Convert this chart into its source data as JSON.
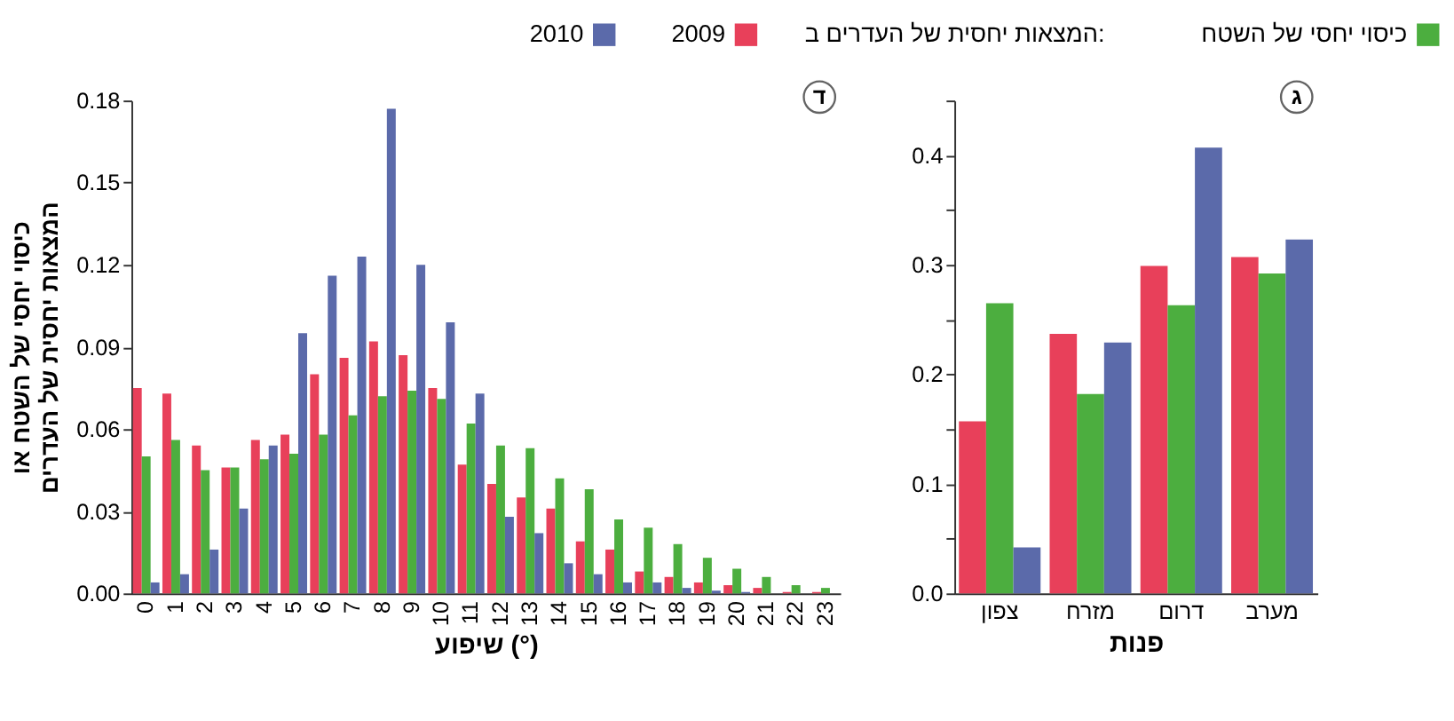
{
  "chart_data": [
    {
      "type": "bar",
      "title": "ד",
      "xlabel": "שיפוע (°)",
      "ylabel": "כיסוי יחסי של השטח או\nהמצאות יחסית של העדרים",
      "legend_title": "המצאות יחסית של העדרים ב:",
      "legend": "top",
      "grid": false,
      "categories": [
        "0",
        "1",
        "2",
        "3",
        "4",
        "5",
        "6",
        "7",
        "8",
        "9",
        "10",
        "11",
        "12",
        "13",
        "14",
        "15",
        "16",
        "17",
        "18",
        "19",
        "20",
        "21",
        "22",
        "23"
      ],
      "ylim": [
        0,
        0.18
      ],
      "yticks": [
        {
          "value": 0,
          "label": "0.00"
        },
        {
          "value": 0.03,
          "label": "0.03"
        },
        {
          "value": 0.06,
          "label": "0.06"
        },
        {
          "value": 0.09,
          "label": "0.09"
        },
        {
          "value": 0.12,
          "label": "0.12"
        },
        {
          "value": 0.15,
          "label": "0.15"
        },
        {
          "value": 0.18,
          "label": "0.18"
        }
      ],
      "series": [
        {
          "name": "2009",
          "color": "#e8405a",
          "values": [
            0.075,
            0.073,
            0.054,
            0.046,
            0.056,
            0.058,
            0.08,
            0.086,
            0.092,
            0.087,
            0.075,
            0.047,
            0.04,
            0.035,
            0.031,
            0.019,
            0.016,
            0.008,
            0.006,
            0.004,
            0.003,
            0.002,
            0.0005,
            0.0005
          ]
        },
        {
          "name": "כיסוי יחסי של השטח",
          "color": "#4cae3f",
          "values": [
            0.05,
            0.056,
            0.045,
            0.046,
            0.049,
            0.051,
            0.058,
            0.065,
            0.072,
            0.074,
            0.071,
            0.062,
            0.054,
            0.053,
            0.042,
            0.038,
            0.027,
            0.024,
            0.018,
            0.013,
            0.009,
            0.006,
            0.003,
            0.002
          ]
        },
        {
          "name": "2010",
          "color": "#5b6aaa",
          "values": [
            0.004,
            0.007,
            0.016,
            0.031,
            0.054,
            0.095,
            0.116,
            0.123,
            0.177,
            0.12,
            0.099,
            0.073,
            0.028,
            0.022,
            0.011,
            0.007,
            0.004,
            0.004,
            0.002,
            0.001,
            0.0005,
            0,
            0,
            0
          ]
        }
      ]
    },
    {
      "type": "bar",
      "title": "ג",
      "xlabel": "פנות",
      "grid": false,
      "categories": [
        "צפון",
        "מזרח",
        "דרום",
        "מערב"
      ],
      "ylim": [
        0,
        0.45
      ],
      "yticks": [
        {
          "value": 0,
          "label": "0.0"
        },
        {
          "value": 0.05,
          "label": null
        },
        {
          "value": 0.1,
          "label": "0.1"
        },
        {
          "value": 0.15,
          "label": null
        },
        {
          "value": 0.2,
          "label": "0.2"
        },
        {
          "value": 0.25,
          "label": null
        },
        {
          "value": 0.3,
          "label": "0.3"
        },
        {
          "value": 0.35,
          "label": null
        },
        {
          "value": 0.4,
          "label": "0.4"
        },
        {
          "value": 0.45,
          "label": null
        }
      ],
      "series": [
        {
          "color": "#e8405a",
          "values": [
            0.157,
            0.237,
            0.299,
            0.307
          ]
        },
        {
          "color": "#4cae3f",
          "values": [
            0.265,
            0.182,
            0.263,
            0.292
          ]
        },
        {
          "color": "#5b6aaa",
          "values": [
            0.042,
            0.229,
            0.407,
            0.323
          ]
        }
      ]
    }
  ]
}
